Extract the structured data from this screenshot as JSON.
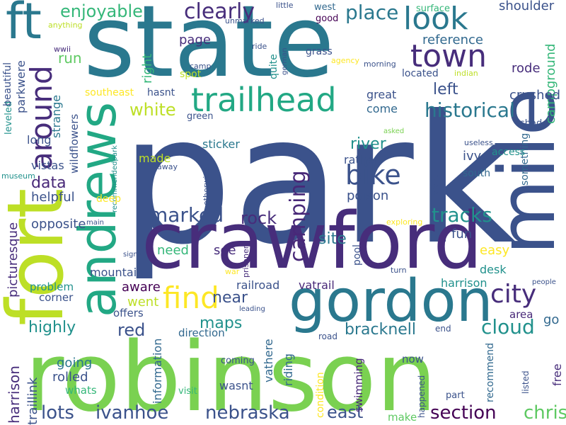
{
  "words": [
    {
      "text": "park",
      "color": "#3b528b"
    },
    {
      "text": "state",
      "color": "#2a788e"
    },
    {
      "text": "robinson",
      "color": "#7ad151"
    },
    {
      "text": "crawford",
      "color": "#472d7b"
    },
    {
      "text": "fort",
      "color": "#bddf26"
    },
    {
      "text": "gordon",
      "color": "#2a788e"
    },
    {
      "text": "mile",
      "color": "#3b528b"
    },
    {
      "text": "andrews",
      "color": "#22a884"
    },
    {
      "text": "ft",
      "color": "#2a788e"
    },
    {
      "text": "trailhead",
      "color": "#22a884"
    },
    {
      "text": "town",
      "color": "#472d7b"
    },
    {
      "text": "look",
      "color": "#2a788e"
    },
    {
      "text": "find",
      "color": "#fde725"
    },
    {
      "text": "around",
      "color": "#472d7b"
    },
    {
      "text": "bike",
      "color": "#3b528b"
    },
    {
      "text": "city",
      "color": "#472d7b"
    },
    {
      "text": "clearly",
      "color": "#472d7b"
    },
    {
      "text": "historical",
      "color": "#2a788e"
    },
    {
      "text": "camping",
      "color": "#482878"
    },
    {
      "text": "enjoyable",
      "color": "#35b779"
    },
    {
      "text": "place",
      "color": "#2a788e"
    },
    {
      "text": "marked",
      "color": "#3b528b"
    },
    {
      "text": "rock",
      "color": "#472d7b"
    },
    {
      "text": "tracks",
      "color": "#21918c"
    },
    {
      "text": "cloud",
      "color": "#21918c"
    },
    {
      "text": "nebraska",
      "color": "#3b528b"
    },
    {
      "text": "section",
      "color": "#440154"
    },
    {
      "text": "chris",
      "color": "#5ec962"
    },
    {
      "text": "ivanhoe",
      "color": "#3b528b"
    },
    {
      "text": "lots",
      "color": "#3b528b"
    },
    {
      "text": "east",
      "color": "#3b528b"
    },
    {
      "text": "bracknell",
      "color": "#2a788e"
    },
    {
      "text": "shoulder",
      "color": "#3b528b"
    },
    {
      "text": "campground",
      "color": "#35b779"
    },
    {
      "text": "reference",
      "color": "#31688e"
    },
    {
      "text": "left",
      "color": "#3b528b"
    },
    {
      "text": "rode",
      "color": "#472d7b"
    },
    {
      "text": "crushed",
      "color": "#3b528b"
    },
    {
      "text": "white",
      "color": "#bddf26"
    },
    {
      "text": "river",
      "color": "#21918c"
    },
    {
      "text": "data",
      "color": "#482878"
    },
    {
      "text": "site",
      "color": "#2a788e"
    },
    {
      "text": "near",
      "color": "#3b528b"
    },
    {
      "text": "maps",
      "color": "#21918c"
    },
    {
      "text": "red",
      "color": "#3b528b"
    },
    {
      "text": "highly",
      "color": "#21918c"
    },
    {
      "text": "run",
      "color": "#5ec962"
    },
    {
      "text": "page",
      "color": "#472d7b"
    },
    {
      "text": "right",
      "color": "#35b779"
    },
    {
      "text": "poison",
      "color": "#3b528b"
    },
    {
      "text": "fun",
      "color": "#3b528b"
    },
    {
      "text": "easy",
      "color": "#fde725"
    },
    {
      "text": "harrison",
      "color": "#21918c"
    },
    {
      "text": "need",
      "color": "#35b779"
    },
    {
      "text": "see",
      "color": "#472d7b"
    },
    {
      "text": "mountain",
      "color": "#3b528b"
    },
    {
      "text": "aware",
      "color": "#440154"
    },
    {
      "text": "went",
      "color": "#bddf26"
    },
    {
      "text": "railroad",
      "color": "#3b528b"
    },
    {
      "text": "vatrail",
      "color": "#482878"
    },
    {
      "text": "go",
      "color": "#31688e"
    },
    {
      "text": "area",
      "color": "#482878"
    },
    {
      "text": "desk",
      "color": "#21918c"
    },
    {
      "text": "harrison",
      "color": "#472d7b"
    },
    {
      "text": "traillink",
      "color": "#3b528b"
    },
    {
      "text": "going",
      "color": "#2a788e"
    },
    {
      "text": "rolled",
      "color": "#3b528b"
    },
    {
      "text": "whats",
      "color": "#35b779"
    },
    {
      "text": "information",
      "color": "#31688e"
    },
    {
      "text": "wasnt",
      "color": "#3b528b"
    },
    {
      "text": "vathere",
      "color": "#31688e"
    },
    {
      "text": "riding",
      "color": "#31688e"
    },
    {
      "text": "swimming",
      "color": "#482878"
    },
    {
      "text": "now",
      "color": "#3b528b"
    },
    {
      "text": "recommend",
      "color": "#31688e"
    },
    {
      "text": "free",
      "color": "#472d7b"
    },
    {
      "text": "make",
      "color": "#5ec962"
    },
    {
      "text": "condition",
      "color": "#fde725"
    },
    {
      "text": "happened",
      "color": "#3b528b"
    },
    {
      "text": "listed",
      "color": "#3b528b"
    },
    {
      "text": "part",
      "color": "#3b528b"
    },
    {
      "text": "visit",
      "color": "#35b779"
    },
    {
      "text": "coming",
      "color": "#3b528b"
    },
    {
      "text": "road",
      "color": "#3b528b"
    },
    {
      "text": "end",
      "color": "#3b528b"
    },
    {
      "text": "direction",
      "color": "#31688e"
    },
    {
      "text": "offers",
      "color": "#3b528b"
    },
    {
      "text": "corner",
      "color": "#3b528b"
    },
    {
      "text": "problem",
      "color": "#21918c"
    },
    {
      "text": "opposite",
      "color": "#3b528b"
    },
    {
      "text": "picturesque",
      "color": "#472d7b"
    },
    {
      "text": "helpful",
      "color": "#3b528b"
    },
    {
      "text": "vistas",
      "color": "#3b528b"
    },
    {
      "text": "long",
      "color": "#3b528b"
    },
    {
      "text": "wildflowers",
      "color": "#3b528b"
    },
    {
      "text": "strange",
      "color": "#2a788e"
    },
    {
      "text": "leveled",
      "color": "#21918c"
    },
    {
      "text": "beautiful",
      "color": "#3b528b"
    },
    {
      "text": "parkwere",
      "color": "#3b528b"
    },
    {
      "text": "museum",
      "color": "#21918c"
    },
    {
      "text": "anything",
      "color": "#bddf26"
    },
    {
      "text": "wwii",
      "color": "#472d7b"
    },
    {
      "text": "unmarked",
      "color": "#3b528b"
    },
    {
      "text": "little",
      "color": "#3b528b"
    },
    {
      "text": "west",
      "color": "#31688e"
    },
    {
      "text": "good",
      "color": "#440154"
    },
    {
      "text": "ride",
      "color": "#3b528b"
    },
    {
      "text": "camp",
      "color": "#3b528b"
    },
    {
      "text": "german",
      "color": "#3b528b"
    },
    {
      "text": "agency",
      "color": "#fde725"
    },
    {
      "text": "grass",
      "color": "#3b528b"
    },
    {
      "text": "quite",
      "color": "#21918c"
    },
    {
      "text": "morning",
      "color": "#3b528b"
    },
    {
      "text": "located",
      "color": "#3b528b"
    },
    {
      "text": "indian",
      "color": "#bddf26"
    },
    {
      "text": "surface",
      "color": "#35b779"
    },
    {
      "text": "spot",
      "color": "#bddf26"
    },
    {
      "text": "southeast",
      "color": "#fde725"
    },
    {
      "text": "hasnt",
      "color": "#3b528b"
    },
    {
      "text": "green",
      "color": "#3b528b"
    },
    {
      "text": "great",
      "color": "#3b528b"
    },
    {
      "text": "come",
      "color": "#31688e"
    },
    {
      "text": "shade",
      "color": "#3b528b"
    },
    {
      "text": "something",
      "color": "#31688e"
    },
    {
      "text": "sticker",
      "color": "#2a788e"
    },
    {
      "text": "made",
      "color": "#bddf26"
    },
    {
      "text": "rather",
      "color": "#3b528b"
    },
    {
      "text": "ivy",
      "color": "#3b528b"
    },
    {
      "text": "access",
      "color": "#21918c"
    },
    {
      "text": "south",
      "color": "#31688e"
    },
    {
      "text": "asked",
      "color": "#7ad151"
    },
    {
      "text": "useless",
      "color": "#3b528b"
    },
    {
      "text": "didnt",
      "color": "#3b528b"
    },
    {
      "text": "recommendedpark",
      "color": "#21918c"
    },
    {
      "text": "away",
      "color": "#3b528b"
    },
    {
      "text": "otherwise",
      "color": "#3b528b"
    },
    {
      "text": "deep",
      "color": "#fde725"
    },
    {
      "text": "main",
      "color": "#3b528b"
    },
    {
      "text": "signs",
      "color": "#3b528b"
    },
    {
      "text": "exploring",
      "color": "#fde725"
    },
    {
      "text": "prisoner",
      "color": "#472d7b"
    },
    {
      "text": "pool",
      "color": "#3b528b"
    },
    {
      "text": "turn",
      "color": "#3b528b"
    },
    {
      "text": "war",
      "color": "#fde725"
    },
    {
      "text": "leading",
      "color": "#3b528b"
    },
    {
      "text": "people",
      "color": "#3b528b"
    }
  ]
}
